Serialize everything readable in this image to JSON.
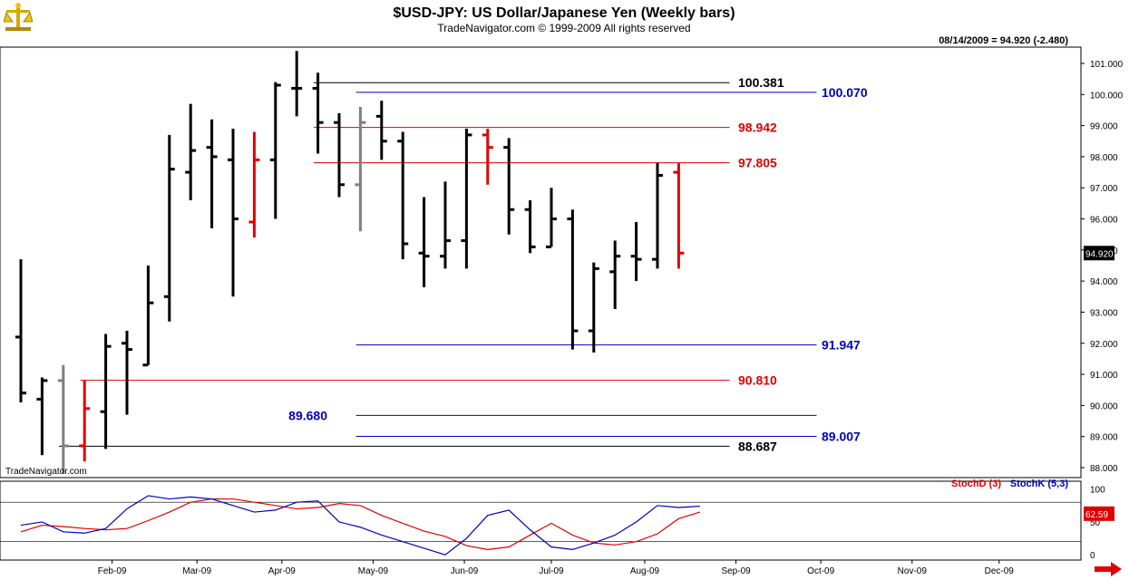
{
  "header": {
    "title": "$USD-JPY:  US Dollar/Japanese Yen  (Weekly bars)",
    "copyright": "TradeNavigator.com © 1999-2009 All rights reserved",
    "last_quote": "08/14/2009 = 94.920 (-2.480)"
  },
  "watermark": "TradeNavigator.com",
  "icons": {
    "logo": "scales-logo-icon",
    "scroll": "scroll-right-arrow-icon"
  },
  "colors": {
    "up": "#000000",
    "down": "#e00000",
    "neutral": "#808080",
    "blue": "#0000c0",
    "red": "#e00000"
  },
  "chart_data": [
    {
      "type": "ohlc",
      "price_label": "94.920",
      "ylim": [
        87.8,
        101.8
      ],
      "y_ticks": [
        "88.000",
        "89.000",
        "90.000",
        "91.000",
        "92.000",
        "93.000",
        "94.000",
        "95.000",
        "96.000",
        "97.000",
        "98.000",
        "99.000",
        "100.000",
        "101.000"
      ],
      "x_months": [
        {
          "label": "Feb-09",
          "week": 4.3
        },
        {
          "label": "Mar-09",
          "week": 8.3
        },
        {
          "label": "Apr-09",
          "week": 12.3
        },
        {
          "label": "May-09",
          "week": 16.6
        },
        {
          "label": "Jun-09",
          "week": 20.9
        },
        {
          "label": "Jul-09",
          "week": 25.0
        },
        {
          "label": "Aug-09",
          "week": 29.4
        },
        {
          "label": "Sep-09",
          "week": 33.7
        },
        {
          "label": "Oct-09",
          "week": 37.7
        },
        {
          "label": "Nov-09",
          "week": 42.0
        },
        {
          "label": "Dec-09",
          "week": 46.1
        }
      ],
      "bars": [
        {
          "o": 92.2,
          "h": 94.7,
          "l": 90.1,
          "c": 90.4,
          "color": "black"
        },
        {
          "o": 90.2,
          "h": 90.9,
          "l": 88.4,
          "c": 90.8,
          "color": "black"
        },
        {
          "o": 90.8,
          "h": 91.3,
          "l": 87.8,
          "c": 88.7,
          "color": "gray"
        },
        {
          "o": 88.7,
          "h": 90.8,
          "l": 88.2,
          "c": 89.9,
          "color": "red"
        },
        {
          "o": 89.8,
          "h": 92.3,
          "l": 88.6,
          "c": 91.9,
          "color": "black"
        },
        {
          "o": 92.0,
          "h": 92.4,
          "l": 89.7,
          "c": 91.8,
          "color": "black"
        },
        {
          "o": 91.3,
          "h": 94.5,
          "l": 91.3,
          "c": 93.3,
          "color": "black"
        },
        {
          "o": 93.5,
          "h": 98.7,
          "l": 92.7,
          "c": 97.6,
          "color": "black"
        },
        {
          "o": 97.5,
          "h": 99.7,
          "l": 96.6,
          "c": 98.2,
          "color": "black"
        },
        {
          "o": 98.3,
          "h": 99.2,
          "l": 95.7,
          "c": 98.0,
          "color": "black"
        },
        {
          "o": 97.9,
          "h": 98.9,
          "l": 93.5,
          "c": 96.0,
          "color": "black"
        },
        {
          "o": 95.9,
          "h": 98.8,
          "l": 95.4,
          "c": 97.9,
          "color": "red"
        },
        {
          "o": 97.9,
          "h": 100.4,
          "l": 96.0,
          "c": 100.3,
          "color": "black"
        },
        {
          "o": 100.2,
          "h": 101.4,
          "l": 99.3,
          "c": 100.2,
          "color": "black"
        },
        {
          "o": 100.2,
          "h": 100.7,
          "l": 98.1,
          "c": 99.1,
          "color": "black"
        },
        {
          "o": 99.1,
          "h": 99.4,
          "l": 96.7,
          "c": 97.1,
          "color": "black"
        },
        {
          "o": 97.1,
          "h": 99.6,
          "l": 95.6,
          "c": 99.1,
          "color": "gray"
        },
        {
          "o": 99.3,
          "h": 99.8,
          "l": 97.9,
          "c": 98.5,
          "color": "black"
        },
        {
          "o": 98.5,
          "h": 98.8,
          "l": 94.7,
          "c": 95.2,
          "color": "black"
        },
        {
          "o": 94.9,
          "h": 96.7,
          "l": 93.8,
          "c": 94.8,
          "color": "black"
        },
        {
          "o": 94.8,
          "h": 97.2,
          "l": 94.4,
          "c": 95.3,
          "color": "black"
        },
        {
          "o": 95.3,
          "h": 98.9,
          "l": 94.4,
          "c": 98.7,
          "color": "black"
        },
        {
          "o": 98.7,
          "h": 98.9,
          "l": 97.1,
          "c": 98.3,
          "color": "red"
        },
        {
          "o": 98.3,
          "h": 98.6,
          "l": 95.5,
          "c": 96.3,
          "color": "black"
        },
        {
          "o": 96.3,
          "h": 96.6,
          "l": 94.9,
          "c": 95.1,
          "color": "black"
        },
        {
          "o": 95.1,
          "h": 97.0,
          "l": 95.1,
          "c": 96.0,
          "color": "black"
        },
        {
          "o": 96.0,
          "h": 96.3,
          "l": 91.8,
          "c": 92.4,
          "color": "black"
        },
        {
          "o": 92.4,
          "h": 94.6,
          "l": 91.7,
          "c": 94.4,
          "color": "black"
        },
        {
          "o": 94.3,
          "h": 95.3,
          "l": 93.1,
          "c": 94.8,
          "color": "black"
        },
        {
          "o": 94.8,
          "h": 95.9,
          "l": 94.0,
          "c": 94.7,
          "color": "black"
        },
        {
          "o": 94.7,
          "h": 97.8,
          "l": 94.4,
          "c": 97.4,
          "color": "black"
        },
        {
          "o": 97.5,
          "h": 97.8,
          "l": 94.4,
          "c": 94.9,
          "color": "red"
        }
      ],
      "levels": [
        {
          "value": 100.381,
          "label": "100.381",
          "color": "black",
          "x1": 13.8,
          "x2": 33.4,
          "labelPos": "right1"
        },
        {
          "value": 100.07,
          "label": "100.070",
          "color": "blue",
          "x1": 15.8,
          "x2": 37.5,
          "labelPos": "right2"
        },
        {
          "value": 98.942,
          "label": "98.942",
          "color": "red",
          "x1": 13.8,
          "x2": 33.4,
          "labelPos": "right1"
        },
        {
          "value": 97.805,
          "label": "97.805",
          "color": "red",
          "x1": 13.8,
          "x2": 33.4,
          "labelPos": "right1"
        },
        {
          "value": 91.947,
          "label": "91.947",
          "color": "blue",
          "x1": 15.8,
          "x2": 37.5,
          "labelPos": "right2"
        },
        {
          "value": 90.81,
          "label": "90.810",
          "color": "red",
          "x1": 2.8,
          "x2": 33.4,
          "labelPos": "right1"
        },
        {
          "value": 89.68,
          "label": "89.680",
          "color": "blue",
          "x1": 15.8,
          "x2": 37.5,
          "labelPos": "left"
        },
        {
          "value": 89.007,
          "label": "89.007",
          "color": "blue",
          "x1": 15.8,
          "x2": 37.5,
          "labelPos": "right2"
        },
        {
          "value": 88.687,
          "label": "88.687",
          "color": "black",
          "x1": 1.8,
          "x2": 33.4,
          "labelPos": "right1"
        }
      ]
    },
    {
      "type": "line",
      "ylim": [
        -8,
        112
      ],
      "y_ticks": [
        "0",
        "50",
        "100"
      ],
      "value_label": "62.59",
      "hlines": [
        20,
        80
      ],
      "series": [
        {
          "name": "StochD (3)",
          "color": "red",
          "values": [
            35,
            45,
            43,
            40,
            38,
            40,
            52,
            65,
            80,
            85,
            85,
            80,
            75,
            70,
            72,
            78,
            75,
            60,
            48,
            36,
            28,
            14,
            8,
            12,
            30,
            48,
            30,
            18,
            15,
            20,
            32,
            55,
            65
          ]
        },
        {
          "name": "StochK (5,3)",
          "color": "blue",
          "values": [
            45,
            50,
            35,
            33,
            40,
            70,
            90,
            85,
            88,
            85,
            75,
            65,
            68,
            80,
            82,
            50,
            42,
            30,
            20,
            10,
            0,
            25,
            60,
            68,
            38,
            12,
            8,
            18,
            30,
            50,
            75,
            72,
            74
          ]
        }
      ]
    }
  ]
}
